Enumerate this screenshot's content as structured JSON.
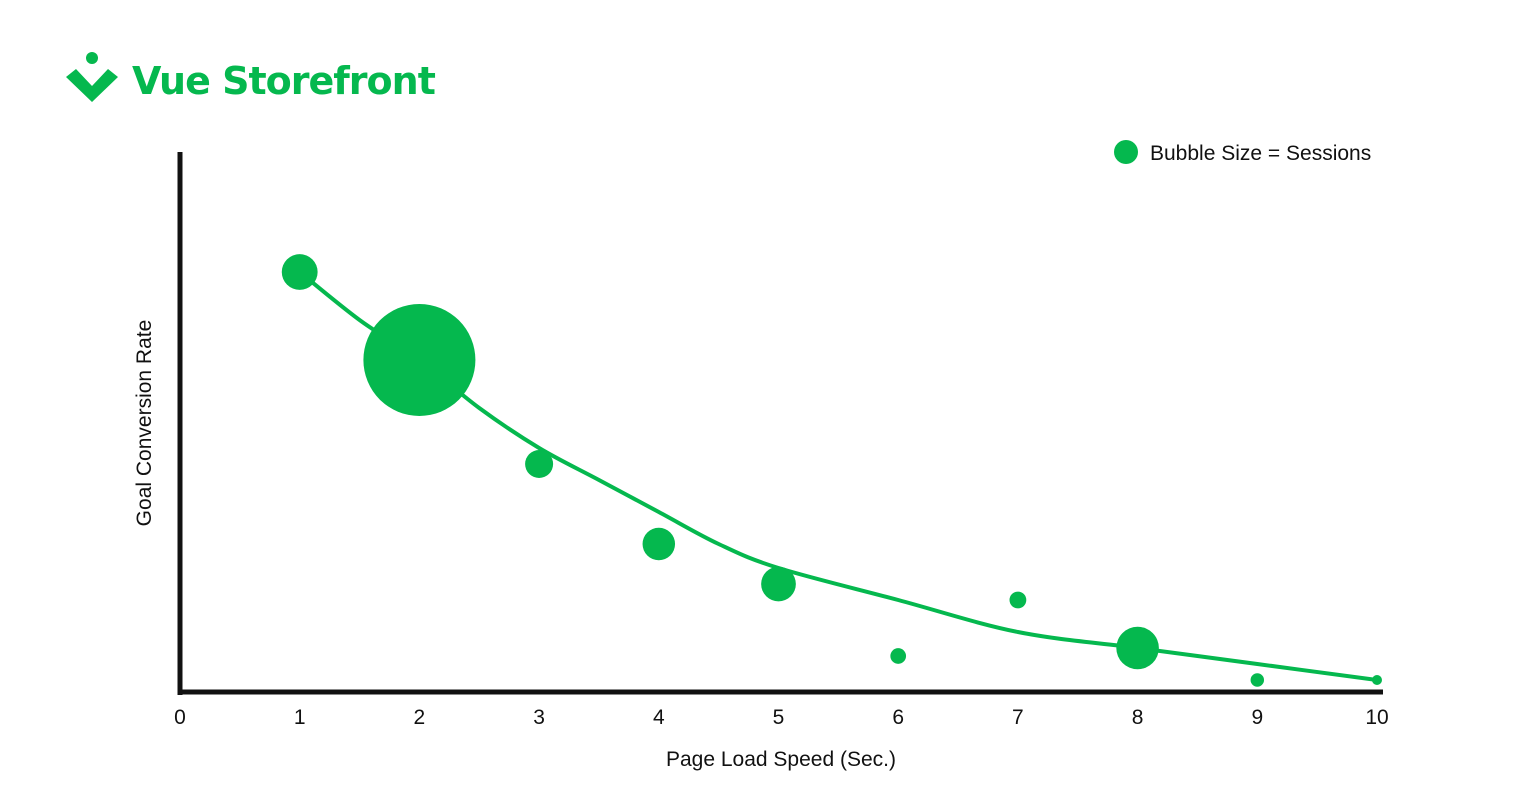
{
  "brand": {
    "name": "Vue Storefront",
    "color": "#05b84e",
    "logo_icon": "vue-storefront-logo-icon"
  },
  "chart_data": {
    "type": "scatter",
    "variant": "bubble",
    "title": "",
    "xlabel": "Page Load Speed (Sec.)",
    "ylabel": "Goal Conversion Rate",
    "xlim": [
      0,
      10
    ],
    "x_ticks": [
      "0",
      "1",
      "2",
      "3",
      "4",
      "5",
      "6",
      "7",
      "8",
      "9",
      "10"
    ],
    "y_ticks": [],
    "grid": false,
    "legend": {
      "label": "Bubble Size = Sessions",
      "position": "top-right"
    },
    "series": [
      {
        "name": "Bubble Size = Sessions",
        "color": "#05b84e",
        "points": [
          {
            "x": 1,
            "y": 0.91,
            "size": 0.32
          },
          {
            "x": 2,
            "y": 0.8,
            "size": 1.0
          },
          {
            "x": 3,
            "y": 0.67,
            "size": 0.25
          },
          {
            "x": 4,
            "y": 0.57,
            "size": 0.29
          },
          {
            "x": 5,
            "y": 0.52,
            "size": 0.31
          },
          {
            "x": 6,
            "y": 0.43,
            "size": 0.14
          },
          {
            "x": 7,
            "y": 0.5,
            "size": 0.15
          },
          {
            "x": 8,
            "y": 0.44,
            "size": 0.38
          },
          {
            "x": 9,
            "y": 0.4,
            "size": 0.12
          },
          {
            "x": 10,
            "y": 0.4,
            "size": 0.07
          }
        ]
      }
    ],
    "trendline": {
      "color": "#05b84e",
      "x": [
        1,
        1.5,
        2,
        2.5,
        3,
        3.5,
        4,
        4.5,
        5,
        6,
        7,
        8,
        9,
        10
      ],
      "y": [
        0.91,
        0.85,
        0.8,
        0.74,
        0.69,
        0.65,
        0.61,
        0.57,
        0.54,
        0.5,
        0.46,
        0.44,
        0.42,
        0.4
      ]
    }
  }
}
